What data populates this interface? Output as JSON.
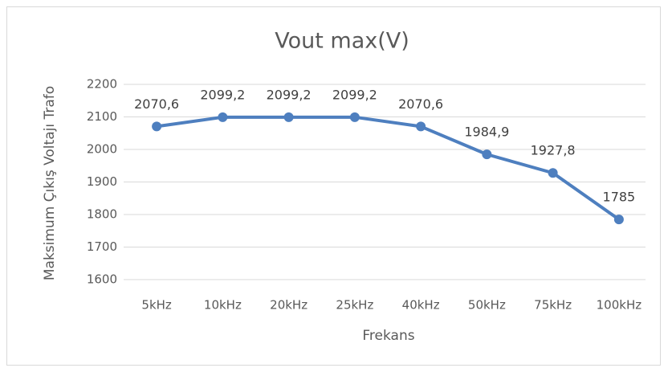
{
  "chart_data": {
    "type": "line",
    "title": "Vout max(V)",
    "x_label": "Frekans",
    "y_label": "Maksimum Çıkış Voltajı Trafo",
    "categories": [
      "5kHz",
      "10kHz",
      "20kHz",
      "25kHz",
      "40kHz",
      "50kHz",
      "75kHz",
      "100kHz"
    ],
    "series": [
      {
        "name": "Vout max(V)",
        "color": "#4e7fbf",
        "values": [
          2070.6,
          2099.2,
          2099.2,
          2099.2,
          2070.6,
          1984.9,
          1927.8,
          1785
        ],
        "value_labels": [
          "2070,6",
          "2099,2",
          "2099,2",
          "2099,2",
          "2070,6",
          "1984,9",
          "1927,8",
          "1785"
        ]
      }
    ],
    "ylim": [
      1600,
      2200
    ],
    "yticks": [
      1600,
      1700,
      1800,
      1900,
      2000,
      2100,
      2200
    ],
    "grid": true
  }
}
